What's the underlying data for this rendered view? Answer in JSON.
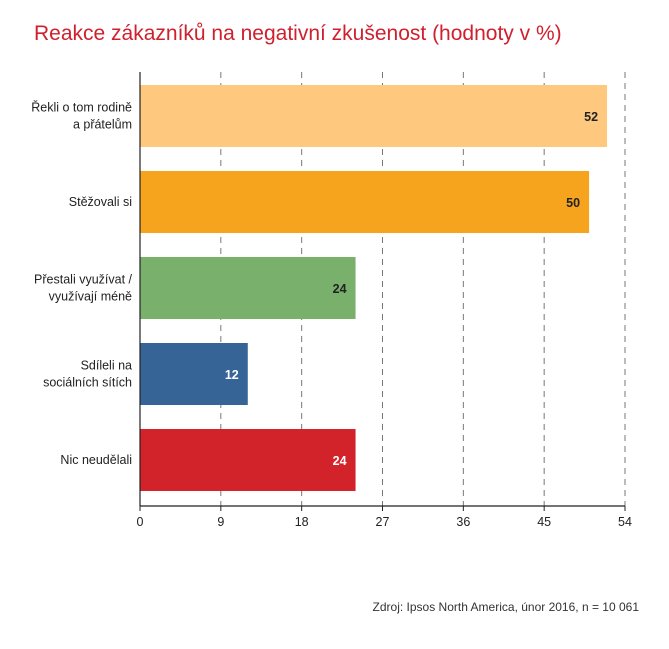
{
  "chart_data": {
    "type": "bar",
    "orientation": "horizontal",
    "title": "Reakce zákazníků na negativní zkušenost (hodnoty v %)",
    "categories": [
      [
        "Řekli o tom rodině",
        "a přátelům"
      ],
      [
        "Stěžovali si"
      ],
      [
        "Přestali využívat /",
        "využívají méně"
      ],
      [
        "Sdíleli na",
        "sociálních sítích"
      ],
      [
        "Nic neudělali"
      ]
    ],
    "values": [
      52,
      50,
      24,
      12,
      24
    ],
    "colors": [
      "#fec97f",
      "#f6a31d",
      "#79b06c",
      "#376496",
      "#d2232a"
    ],
    "value_label_colors": [
      "#222222",
      "#222222",
      "#222222",
      "#ffffff",
      "#ffffff"
    ],
    "xlim": [
      0,
      54
    ],
    "xticks": [
      0,
      9,
      18,
      27,
      36,
      45,
      54
    ],
    "grid": "vertical dashed",
    "legend": "none"
  },
  "source": "Zdroj: Ipsos North America, únor 2016, n = 10 061"
}
